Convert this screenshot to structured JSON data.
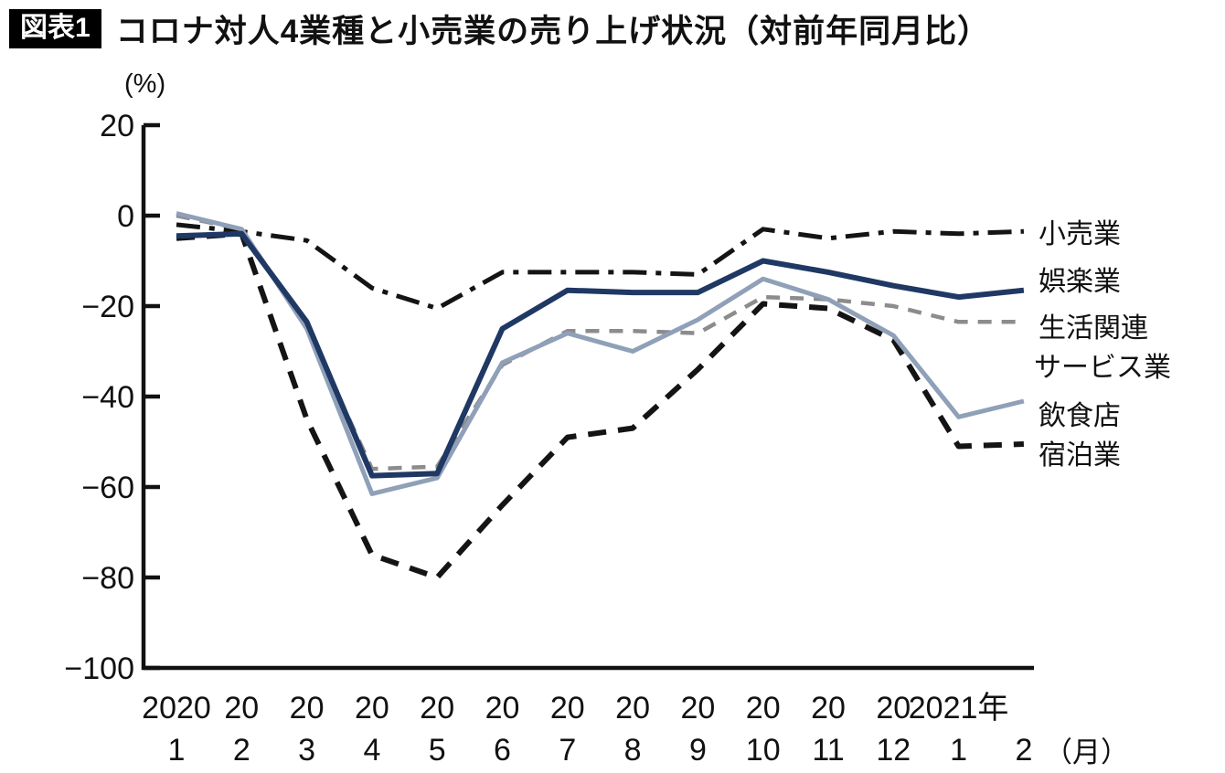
{
  "header": {
    "badge": "図表1",
    "title": "コロナ対人4業種と小売業の売り上げ状況（対前年同月比）"
  },
  "chart_data": {
    "type": "line",
    "title": "コロナ対人4業種と小売業の売り上げ状況（対前年同月比）",
    "y_unit": "(%)",
    "x_unit": "（月）",
    "ylim": [
      -100,
      20
    ],
    "y_ticks": [
      20,
      0,
      -20,
      -40,
      -60,
      -80,
      -100
    ],
    "categories": [
      "2020-1",
      "2020-2",
      "2020-3",
      "2020-4",
      "2020-5",
      "2020-6",
      "2020-7",
      "2020-8",
      "2020-9",
      "2020-10",
      "2020-11",
      "2020-12",
      "2021-1",
      "2021-2"
    ],
    "x_year_labels": [
      "2020",
      "20",
      "20",
      "20",
      "20",
      "20",
      "20",
      "20",
      "20",
      "20",
      "20",
      "20",
      "2021年",
      ""
    ],
    "x_month_labels": [
      "1",
      "2",
      "3",
      "4",
      "5",
      "6",
      "7",
      "8",
      "9",
      "10",
      "11",
      "12",
      "1",
      "2"
    ],
    "grid": false,
    "legend_position": "right",
    "legend_labels": [
      "小売業",
      "娯楽業",
      "生活関連",
      "サービス業",
      "飲食店",
      "宿泊業"
    ],
    "series": [
      {
        "name": "小売業",
        "style": "dashdot",
        "color": "#141414",
        "width": 5,
        "values": [
          -2,
          -3.5,
          -5.5,
          -16,
          -20.5,
          -12.5,
          -12.5,
          -12.5,
          -13,
          -3,
          -5,
          -3.5,
          -4,
          -3.5
        ]
      },
      {
        "name": "娯楽業",
        "style": "solid",
        "color": "#1f3864",
        "width": 6,
        "values": [
          -4.5,
          -4,
          -23.5,
          -57.5,
          -57,
          -25,
          -16.5,
          -17,
          -17,
          -10,
          -12.5,
          -15.5,
          -18,
          -16.5
        ]
      },
      {
        "name": "生活関連サービス業",
        "style": "dashed",
        "color": "#8c8c8c",
        "width": 4.5,
        "values": [
          0,
          -3,
          -24.5,
          -56,
          -55.5,
          -33,
          -25.5,
          -25.5,
          -26,
          -18,
          -18.5,
          -20,
          -23.5,
          -23.5
        ]
      },
      {
        "name": "飲食店",
        "style": "solid",
        "color": "#8fa0b8",
        "width": 5,
        "values": [
          0.5,
          -3,
          -25,
          -61.5,
          -58,
          -32.5,
          -26,
          -30,
          -23,
          -14,
          -18.5,
          -26.5,
          -44.5,
          -41
        ]
      },
      {
        "name": "宿泊業",
        "style": "dashed",
        "color": "#141414",
        "width": 6,
        "values": [
          -5,
          -4,
          -45,
          -75,
          -80,
          -64,
          -49,
          -47,
          -34,
          -19.5,
          -20.5,
          -27.5,
          -51,
          -50.5
        ]
      }
    ]
  }
}
